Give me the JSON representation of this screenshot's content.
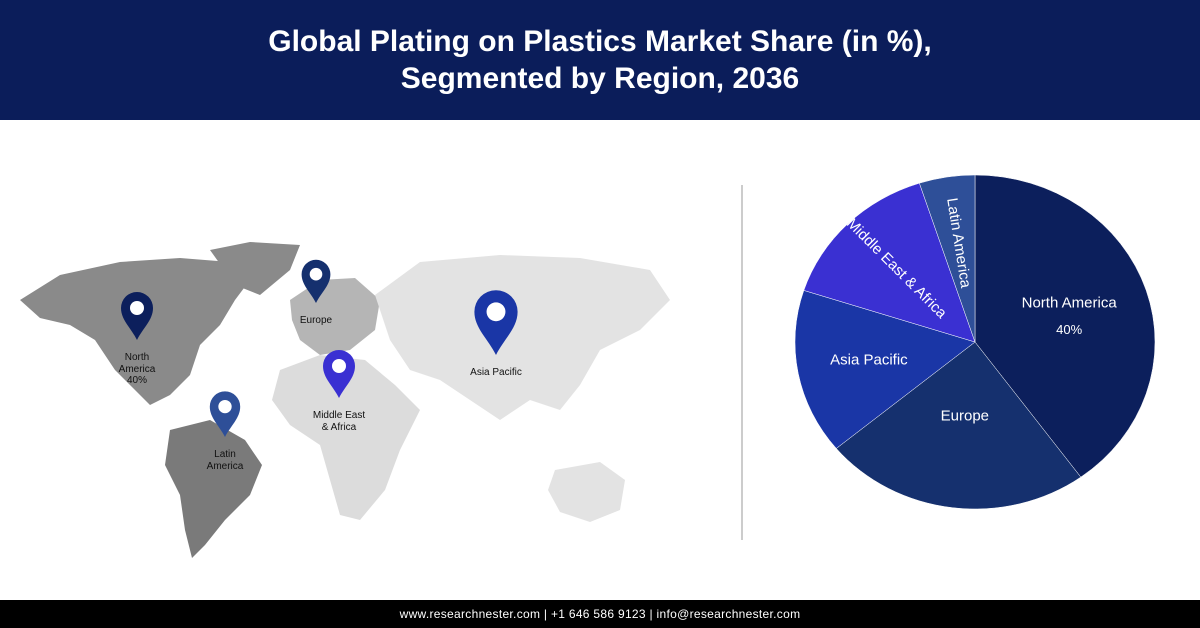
{
  "chart_data": {
    "type": "pie",
    "title": "Global Plating on Plastics Market Share (in %), Segmented by Region, 2036",
    "categories": [
      "North America",
      "Europe",
      "Asia Pacific",
      "Middle East & Africa",
      "Latin America"
    ],
    "values": [
      40,
      24,
      16,
      15,
      5
    ],
    "value_labels": [
      "40%",
      null,
      null,
      null,
      null
    ],
    "colors": [
      "#0c1f5c",
      "#15306e",
      "#1a36a6",
      "#3a30d2",
      "#2e4f98"
    ]
  },
  "footer": "www.researchnester.com | +1 646 586 9123 | info@researchnester.com"
}
